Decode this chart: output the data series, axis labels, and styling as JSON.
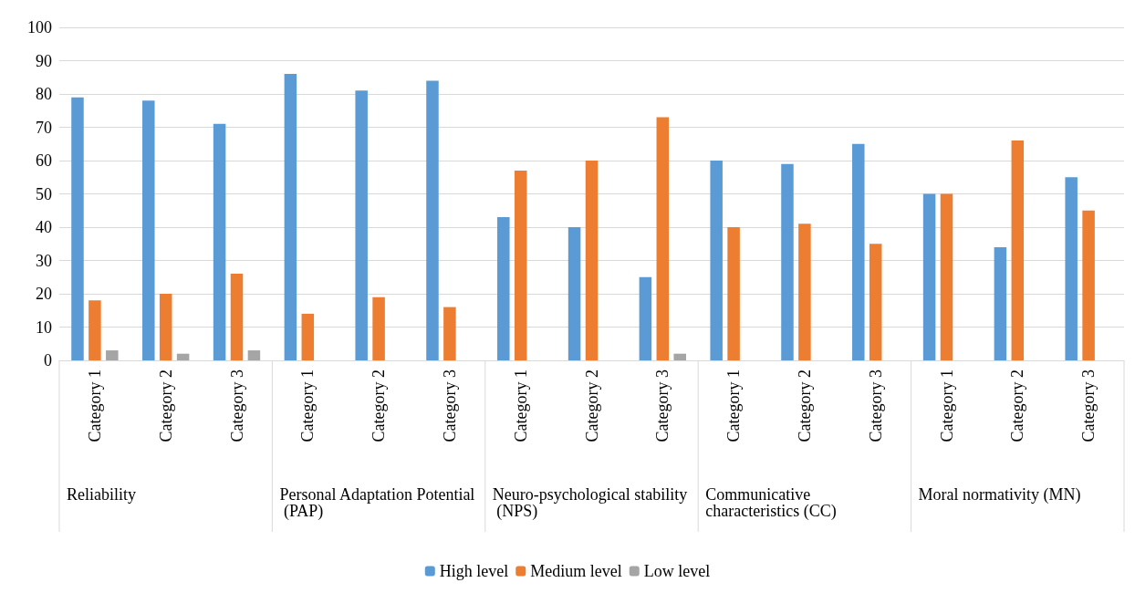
{
  "chart_data": {
    "type": "bar",
    "categories": [
      "Category 1",
      "Category 2",
      "Category 3",
      "Category 1",
      "Category 2",
      "Category 3",
      "Category 1",
      "Category 2",
      "Category 3",
      "Category 1",
      "Category 2",
      "Category 3",
      "Category 1",
      "Category 2",
      "Category 3"
    ],
    "annotations": [
      "Reliability",
      "Personal Adaptation Potential (PAP)",
      "Neuro-psychological stability (NPS)",
      "Communicative characteristics (CC)",
      "Moral normativity (MN)"
    ],
    "series": [
      {
        "name": "High level",
        "color": "#5b9bd5",
        "values": [
          79,
          78,
          71,
          86,
          81,
          84,
          43,
          40,
          25,
          60,
          59,
          65,
          50,
          34,
          55
        ]
      },
      {
        "name": "Medium level",
        "color": "#ed7d31",
        "values": [
          18,
          20,
          26,
          14,
          19,
          16,
          57,
          60,
          73,
          40,
          41,
          35,
          50,
          66,
          45
        ]
      },
      {
        "name": "Low level",
        "color": "#a5a5a5",
        "values": [
          3,
          2,
          3,
          null,
          null,
          null,
          null,
          null,
          2,
          null,
          null,
          null,
          null,
          null,
          null
        ]
      }
    ],
    "ylim": [
      0,
      100
    ],
    "yticks": [
      0,
      10,
      20,
      30,
      40,
      50,
      60,
      70,
      80,
      90,
      100
    ],
    "grid": "y",
    "legend": "bottom"
  }
}
